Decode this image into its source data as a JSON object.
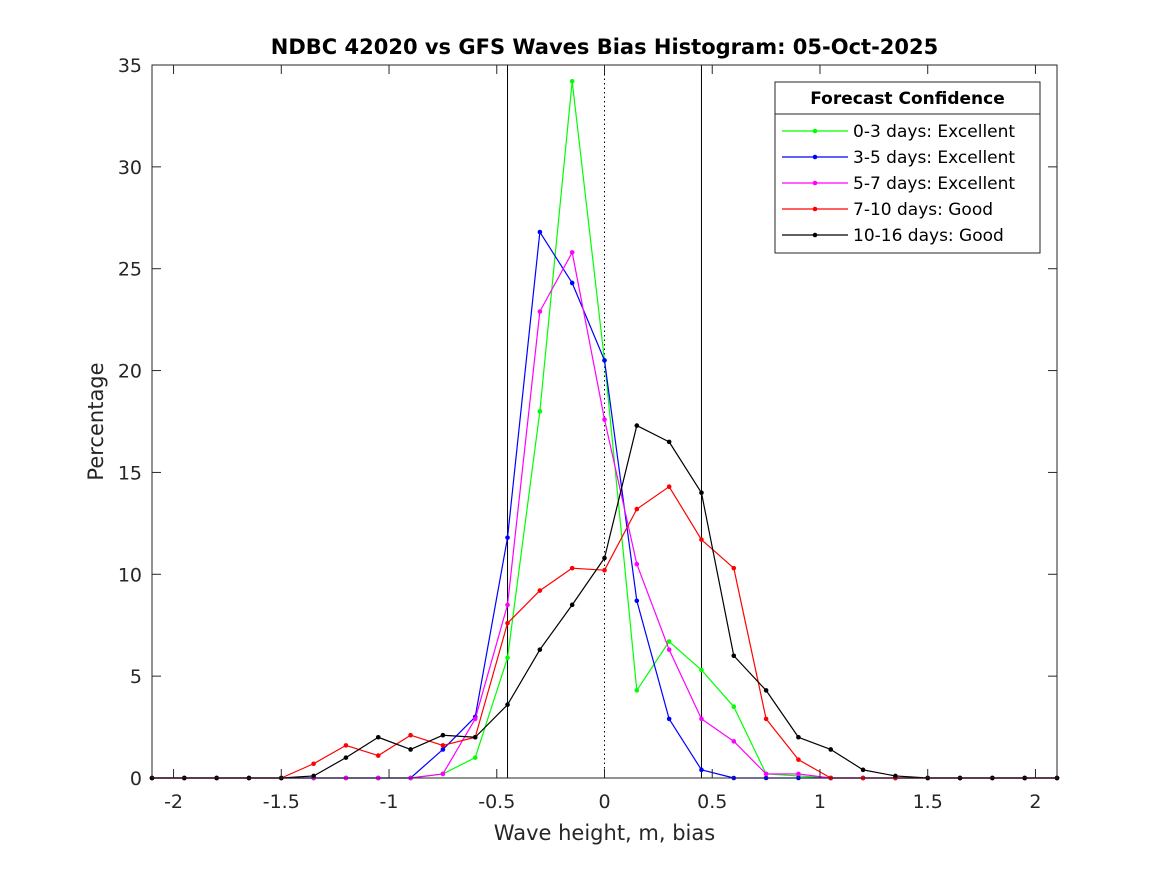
{
  "chart_data": {
    "type": "line",
    "title": "NDBC 42020 vs GFS Waves Bias Histogram: 05-Oct-2025",
    "xlabel": "Wave height, m, bias",
    "ylabel": "Percentage",
    "xlim": [
      -2.1,
      2.1
    ],
    "ylim": [
      0,
      35
    ],
    "xticks": [
      -2,
      -1.5,
      -1,
      -0.5,
      0,
      0.5,
      1,
      1.5,
      2
    ],
    "xtick_labels": [
      "-2",
      "-1.5",
      "-1",
      "-0.5",
      "0",
      "0.5",
      "1",
      "1.5",
      "2"
    ],
    "yticks": [
      0,
      5,
      10,
      15,
      20,
      25,
      30,
      35
    ],
    "ytick_labels": [
      "0",
      "5",
      "10",
      "15",
      "20",
      "25",
      "30",
      "35"
    ],
    "reference_lines": [
      {
        "x": -0.45,
        "style": "solid"
      },
      {
        "x": 0,
        "style": "dotted"
      },
      {
        "x": 0.45,
        "style": "solid"
      }
    ],
    "legend_title": "Forecast Confidence",
    "legend_position": "top-right",
    "x": [
      -2.1,
      -1.95,
      -1.8,
      -1.65,
      -1.5,
      -1.35,
      -1.2,
      -1.05,
      -0.9,
      -0.75,
      -0.6,
      -0.45,
      -0.3,
      -0.15,
      0,
      0.15,
      0.3,
      0.45,
      0.6,
      0.75,
      0.9,
      1.05,
      1.2,
      1.35,
      1.5,
      1.65,
      1.8,
      1.95,
      2.1
    ],
    "series": [
      {
        "name": "0-3 days: Excellent",
        "color": "#00ff00",
        "values": [
          0,
          0,
          0,
          0,
          0,
          0,
          0,
          0,
          0,
          0.2,
          1.0,
          5.9,
          18.0,
          34.2,
          20.5,
          4.3,
          6.7,
          5.3,
          3.5,
          0.2,
          0.1,
          0,
          0,
          0,
          0,
          0,
          0,
          0,
          0
        ]
      },
      {
        "name": "3-5 days: Excellent",
        "color": "#0000ff",
        "values": [
          0,
          0,
          0,
          0,
          0,
          0,
          0,
          0,
          0,
          1.4,
          3.0,
          11.8,
          26.8,
          24.3,
          20.5,
          8.7,
          2.9,
          0.4,
          0,
          0,
          0,
          0,
          0,
          0,
          0,
          0,
          0,
          0,
          0
        ]
      },
      {
        "name": "5-7 days: Excellent",
        "color": "#ff00ff",
        "values": [
          0,
          0,
          0,
          0,
          0,
          0,
          0,
          0,
          0,
          0.2,
          2.9,
          8.5,
          22.9,
          25.8,
          17.6,
          10.5,
          6.3,
          2.9,
          1.8,
          0.2,
          0.2,
          0,
          0,
          0,
          0,
          0,
          0,
          0,
          0
        ]
      },
      {
        "name": "7-10 days: Good",
        "color": "#ff0000",
        "values": [
          0,
          0,
          0,
          0,
          0,
          0.7,
          1.6,
          1.1,
          2.1,
          1.6,
          2.0,
          7.6,
          9.2,
          10.3,
          10.2,
          13.2,
          14.3,
          11.7,
          10.3,
          2.9,
          0.9,
          0,
          0,
          0,
          0,
          0,
          0,
          0,
          0
        ]
      },
      {
        "name": "10-16 days: Good",
        "color": "#000000",
        "values": [
          0,
          0,
          0,
          0,
          0,
          0.1,
          1.0,
          2.0,
          1.4,
          2.1,
          2.0,
          3.6,
          6.3,
          8.5,
          10.8,
          17.3,
          16.5,
          14.0,
          6.0,
          4.3,
          2.0,
          1.4,
          0.4,
          0.1,
          0,
          0,
          0,
          0,
          0
        ]
      }
    ]
  }
}
